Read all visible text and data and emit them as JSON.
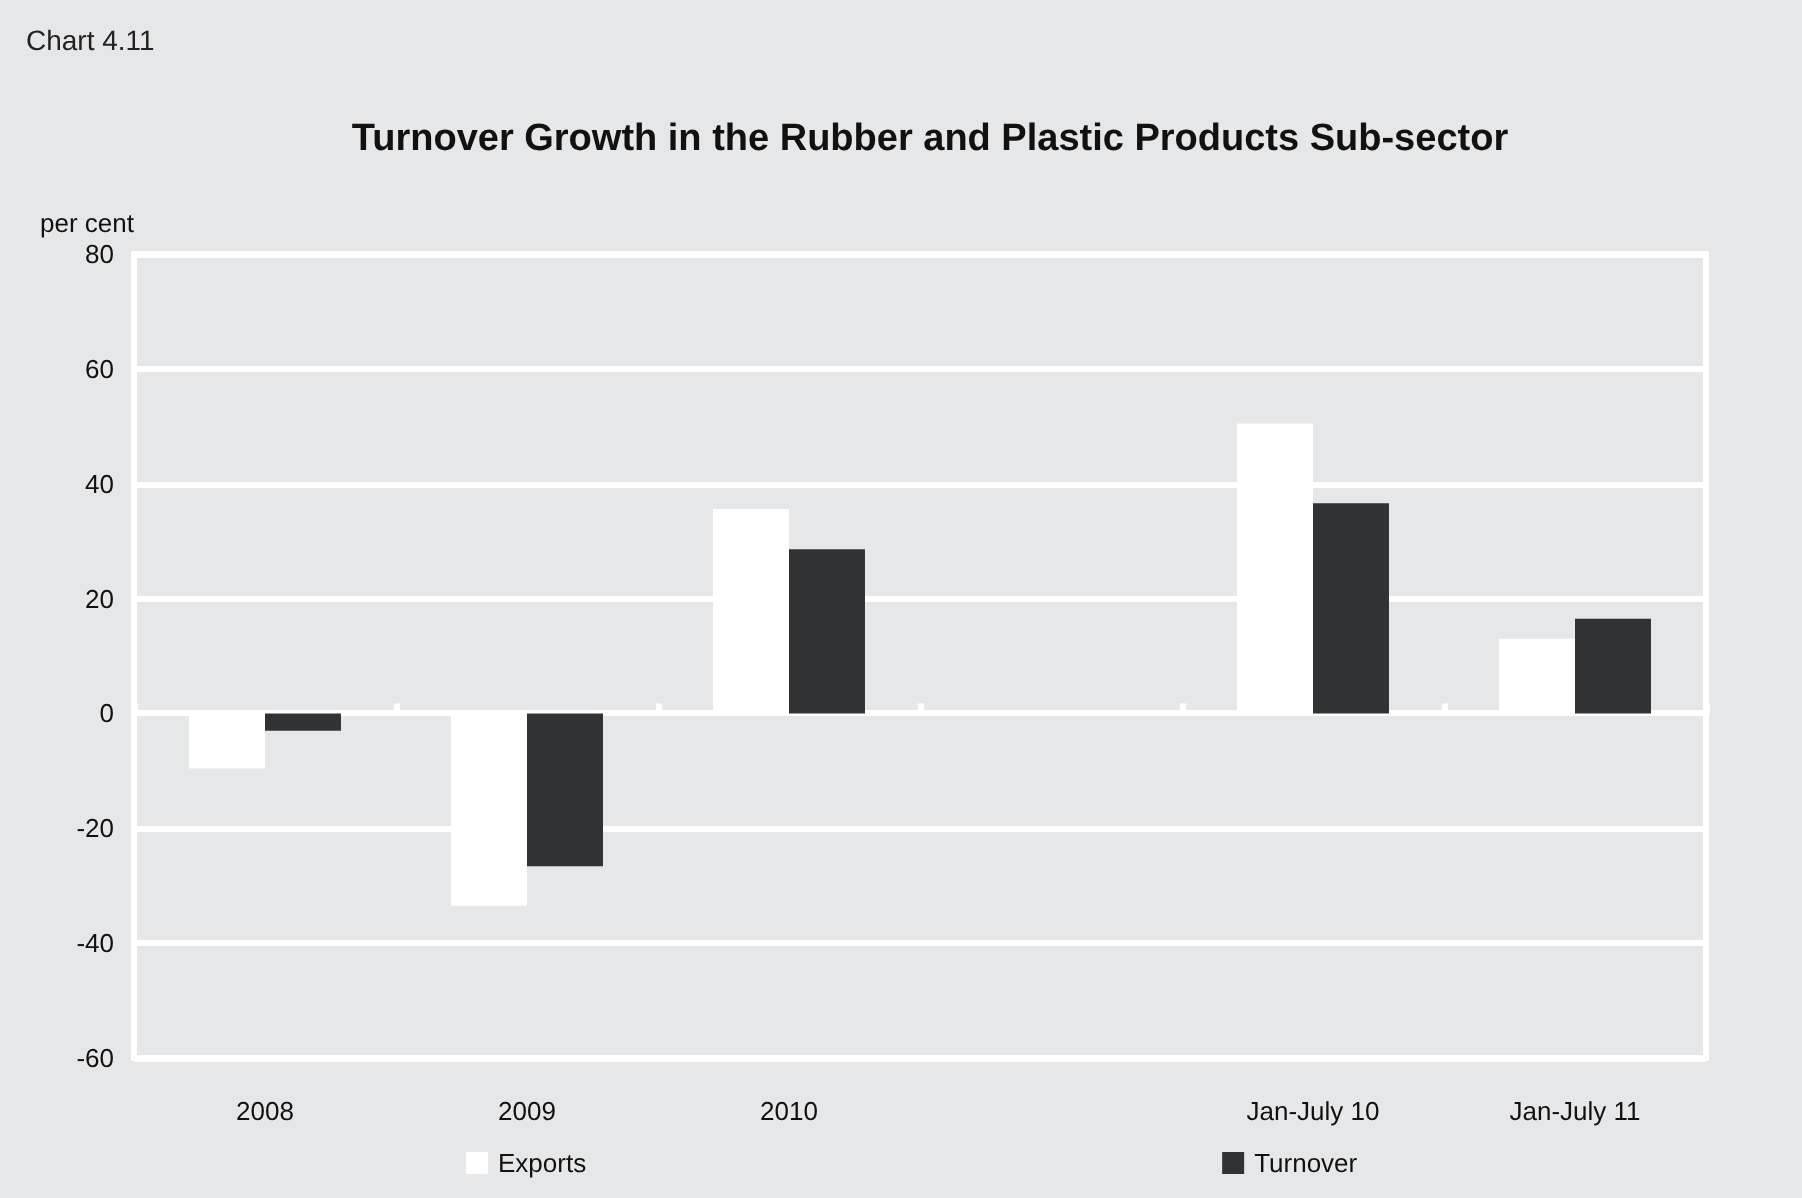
{
  "chart_data": {
    "type": "bar",
    "title": "Turnover Growth in the Rubber and Plastic Products Sub-sector",
    "annotations": [
      "Chart 4.11"
    ],
    "ylabel": "per cent",
    "categories": [
      "2008",
      "2009",
      "2010",
      null,
      "Jan-July 10",
      "Jan-July 11"
    ],
    "series": [
      {
        "name": "Exports",
        "color": "#ffffff",
        "values": [
          -9.6,
          -33.5,
          35.6,
          null,
          50.5,
          13.0
        ]
      },
      {
        "name": "Turnover",
        "color": "#313234",
        "values": [
          -3.0,
          -26.6,
          28.6,
          null,
          36.6,
          16.5
        ]
      }
    ],
    "ylim": [
      -60,
      80
    ],
    "yticks": [
      -60,
      -40,
      -20,
      0,
      20,
      40,
      60,
      80
    ],
    "grid": "y",
    "legend": "bottom"
  }
}
